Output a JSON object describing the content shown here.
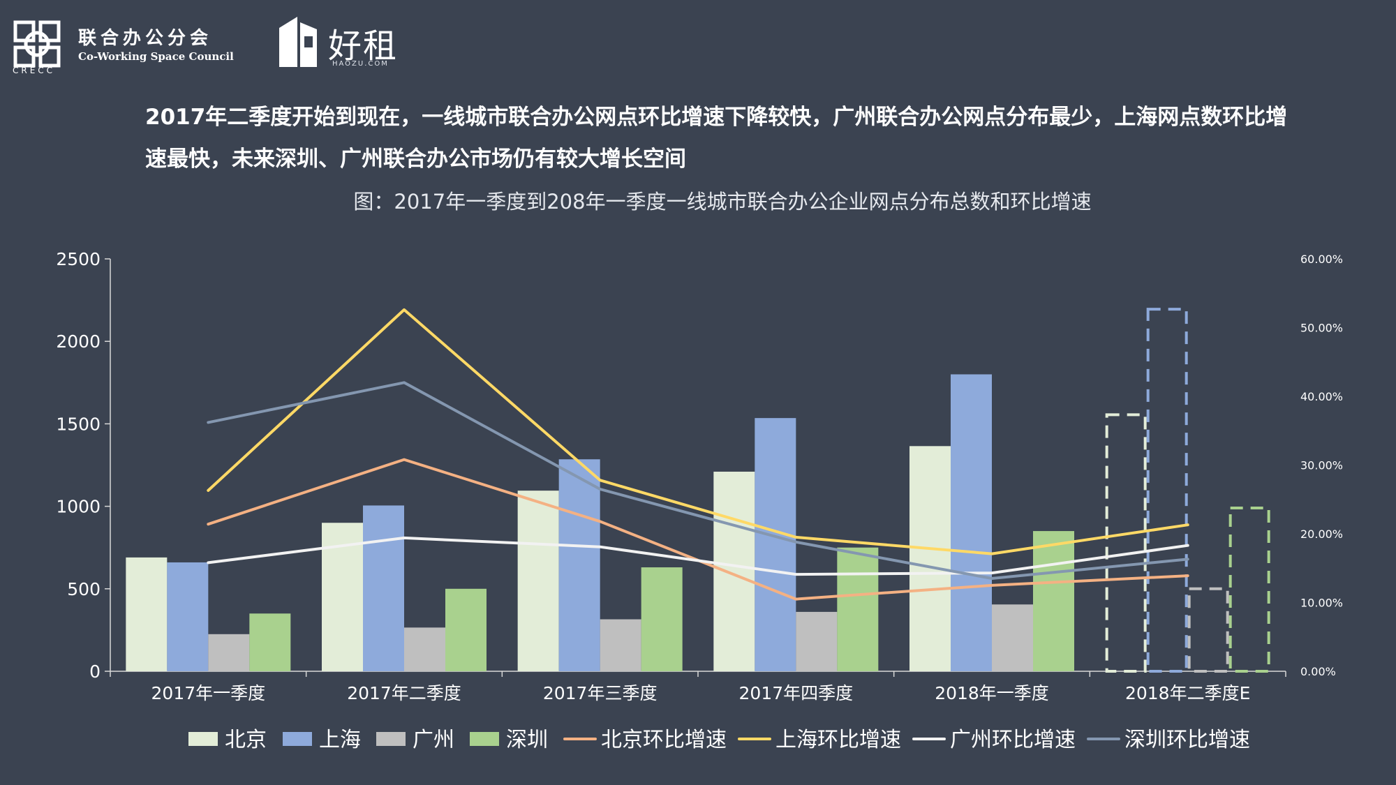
{
  "brand": {
    "crecc_sub": "CRECC",
    "council_cn": "联合办公分会",
    "council_en": "Co-Working Space Council",
    "haozu_cn": "好租",
    "haozu_en": "HAOZU.COM"
  },
  "headline": "2017年二季度开始到现在，一线城市联合办公网点环比增速下降较快，广州联合办公网点分布最少，上海网点数环比增速最快，未来深圳、广州联合办公市场仍有较大增长空间",
  "subtitle": "图：2017年一季度到208年一季度一线城市联合办公企业网点分布总数和环比增速",
  "colors": {
    "background": "#3b4351",
    "beijing": "#e3edd8",
    "shanghai": "#8eaadb",
    "guangzhou": "#bfbfbf",
    "shenzhen": "#a9d18e",
    "beijing_growth": "#f4b183",
    "shanghai_growth": "#ffd966",
    "guangzhou_growth": "#f2f2f2",
    "shenzhen_growth": "#8497b0"
  },
  "chart_data": {
    "type": "bar",
    "categories": [
      "2017年一季度",
      "2017年二季度",
      "2017年三季度",
      "2017年四季度",
      "2018年一季度",
      "2018年二季度E"
    ],
    "series": [
      {
        "name": "北京",
        "kind": "bar",
        "values": [
          690,
          900,
          1095,
          1210,
          1365,
          1555
        ],
        "estimated_last": true
      },
      {
        "name": "上海",
        "kind": "bar",
        "values": [
          660,
          1005,
          1285,
          1535,
          1800,
          2195
        ],
        "estimated_last": true
      },
      {
        "name": "广州",
        "kind": "bar",
        "values": [
          225,
          265,
          315,
          360,
          405,
          500
        ],
        "estimated_last": true
      },
      {
        "name": "深圳",
        "kind": "bar",
        "values": [
          350,
          500,
          630,
          750,
          850,
          990
        ],
        "estimated_last": true
      },
      {
        "name": "北京环比增速",
        "kind": "line",
        "values": [
          0.214,
          0.308,
          0.218,
          0.105,
          0.125,
          0.139
        ]
      },
      {
        "name": "上海环比增速",
        "kind": "line",
        "values": [
          0.263,
          0.526,
          0.278,
          0.195,
          0.171,
          0.213
        ]
      },
      {
        "name": "广州环比增速",
        "kind": "line",
        "values": [
          0.158,
          0.194,
          0.181,
          0.141,
          0.143,
          0.183
        ]
      },
      {
        "name": "深圳环比增速",
        "kind": "line",
        "values": [
          0.362,
          0.42,
          0.265,
          0.188,
          0.135,
          0.163
        ]
      }
    ],
    "y_left": {
      "min": 0,
      "max": 2500,
      "ticks": [
        "0",
        "500",
        "1000",
        "1500",
        "2000",
        "2500"
      ]
    },
    "y_right": {
      "min": 0,
      "max": 0.6,
      "ticks": [
        "0.00%",
        "10.00%",
        "20.00%",
        "30.00%",
        "40.00%",
        "50.00%",
        "60.00%"
      ]
    },
    "legend_position": "bottom",
    "grid": false
  }
}
